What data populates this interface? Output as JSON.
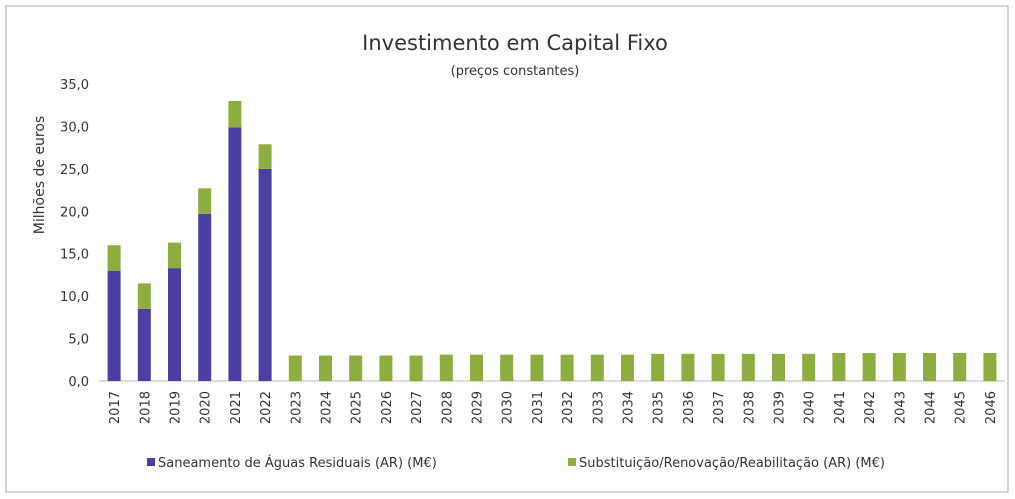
{
  "chart_data": {
    "type": "stacked_bar",
    "title": "Investimento em Capital Fixo",
    "subtitle": "(preços constantes)",
    "y_label": "Milhões de euros",
    "categories": [
      "2017",
      "2018",
      "2019",
      "2020",
      "2021",
      "2022",
      "2023",
      "2024",
      "2025",
      "2026",
      "2027",
      "2028",
      "2029",
      "2030",
      "2031",
      "2032",
      "2033",
      "2034",
      "2035",
      "2036",
      "2037",
      "2038",
      "2039",
      "2040",
      "2041",
      "2042",
      "2043",
      "2044",
      "2045",
      "2046"
    ],
    "series": [
      {
        "name": "Saneamento de Águas Residuais (AR) (M€)",
        "color": "#4b3fa3",
        "values": [
          13.0,
          8.5,
          13.3,
          19.7,
          29.9,
          25.0,
          0,
          0,
          0,
          0,
          0,
          0,
          0,
          0,
          0,
          0,
          0,
          0,
          0,
          0,
          0,
          0,
          0,
          0,
          0,
          0,
          0,
          0,
          0,
          0
        ]
      },
      {
        "name": "Substituição/Renovação/Reabilitação (AR) (M€)",
        "color": "#8bae3e",
        "values": [
          3.0,
          3.0,
          3.0,
          3.0,
          3.1,
          2.9,
          3.0,
          3.0,
          3.0,
          3.0,
          3.0,
          3.1,
          3.1,
          3.1,
          3.1,
          3.1,
          3.1,
          3.1,
          3.2,
          3.2,
          3.2,
          3.2,
          3.2,
          3.2,
          3.3,
          3.3,
          3.3,
          3.3,
          3.3,
          3.3
        ]
      }
    ],
    "ylim": [
      0,
      35
    ],
    "yticks": [
      {
        "value": 0,
        "label": "0,0"
      },
      {
        "value": 5,
        "label": "5,0"
      },
      {
        "value": 10,
        "label": "10,0"
      },
      {
        "value": 15,
        "label": "15,0"
      },
      {
        "value": 20,
        "label": "20,0"
      },
      {
        "value": 25,
        "label": "25,0"
      },
      {
        "value": 30,
        "label": "30,0"
      },
      {
        "value": 35,
        "label": "35,0"
      }
    ],
    "grid": false
  }
}
